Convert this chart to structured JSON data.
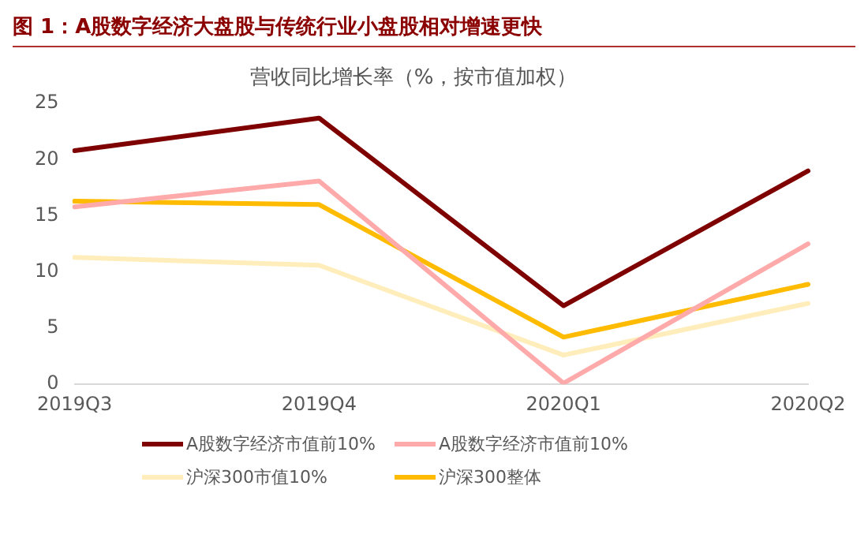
{
  "chart_data": {
    "type": "line",
    "title": "图 1：A股数字经济大盘股与传统行业小盘股相对增速更快",
    "subtitle": "营收同比增长率（%，按市值加权）",
    "categories": [
      "2019Q3",
      "2019Q4",
      "2020Q1",
      "2020Q2"
    ],
    "series": [
      {
        "name": "A股数字经济市值前10%",
        "color": "#7f0000",
        "values": [
          20.8,
          23.7,
          7.0,
          19.0
        ]
      },
      {
        "name": "A股数字经济市值前10%",
        "color": "#ffaaaa",
        "values": [
          15.8,
          18.1,
          0.1,
          12.5
        ]
      },
      {
        "name": "沪深300市值10%",
        "color": "#ffeebb",
        "values": [
          11.3,
          10.6,
          2.6,
          7.2
        ]
      },
      {
        "name": "沪深300整体",
        "color": "#ffbb00",
        "values": [
          16.3,
          16.0,
          4.2,
          8.9
        ]
      }
    ],
    "ylim": [
      0,
      25
    ],
    "yticks": [
      0,
      5,
      10,
      15,
      20,
      25
    ],
    "grid": false,
    "legend": "bottom",
    "line_style": "solid"
  }
}
